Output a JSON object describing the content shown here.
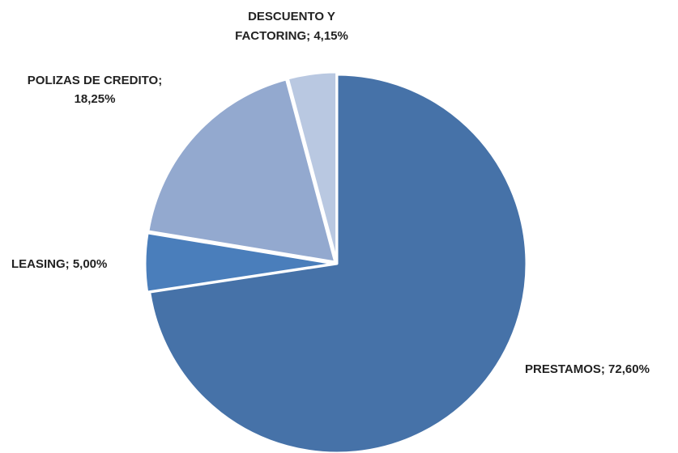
{
  "chart_data": {
    "type": "pie",
    "title": "",
    "slices": [
      {
        "label": "PRESTAMOS",
        "value": 72.6,
        "text": "PRESTAMOS; 72,60%",
        "color": "#4672A8"
      },
      {
        "label": "LEASING",
        "value": 5.0,
        "text": "LEASING; 5,00%",
        "color": "#4A7EBB"
      },
      {
        "label": "POLIZAS DE CREDITO",
        "value": 18.25,
        "text_lines": [
          "POLIZAS DE CREDITO;",
          "18,25%"
        ],
        "color": "#93A9CF"
      },
      {
        "label": "DESCUENTO Y FACTORING",
        "value": 4.15,
        "text_lines": [
          "DESCUENTO Y",
          "FACTORING; 4,15%"
        ],
        "color": "#B9C8E1"
      }
    ],
    "start_angle_deg": 0,
    "direction": "clockwise",
    "legend": "none"
  }
}
